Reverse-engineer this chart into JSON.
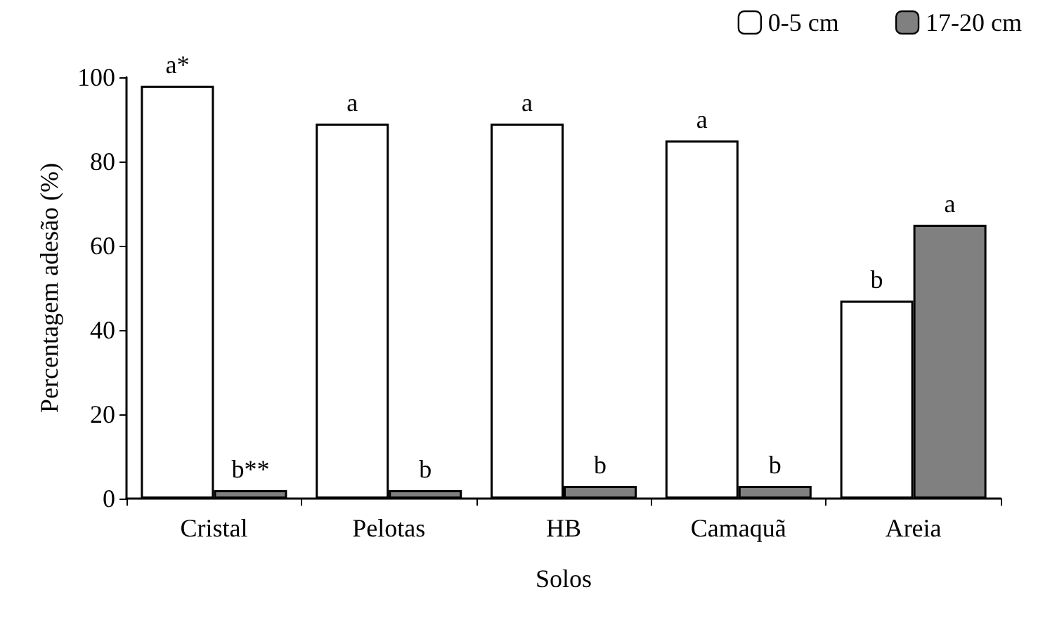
{
  "chart_data": {
    "type": "bar",
    "xlabel": "Solos",
    "ylabel": "Percentagem adesão (%)",
    "categories": [
      "Cristal",
      "Pelotas",
      "HB",
      "Camaquã",
      "Areia"
    ],
    "series": [
      {
        "name": "0-5 cm",
        "color": "#ffffff",
        "values": [
          98,
          89,
          89,
          85,
          47
        ],
        "value_labels": [
          "a*",
          "a",
          "a",
          "a",
          "b"
        ]
      },
      {
        "name": "17-20 cm",
        "color": "#808080",
        "values": [
          2,
          2,
          3,
          3,
          65
        ],
        "value_labels": [
          "b**",
          "b",
          "b",
          "b",
          "a"
        ]
      }
    ],
    "ylim": [
      0,
      100
    ],
    "yticks": [
      0,
      20,
      40,
      60,
      80,
      100
    ],
    "grid": false,
    "legend": "top right"
  }
}
